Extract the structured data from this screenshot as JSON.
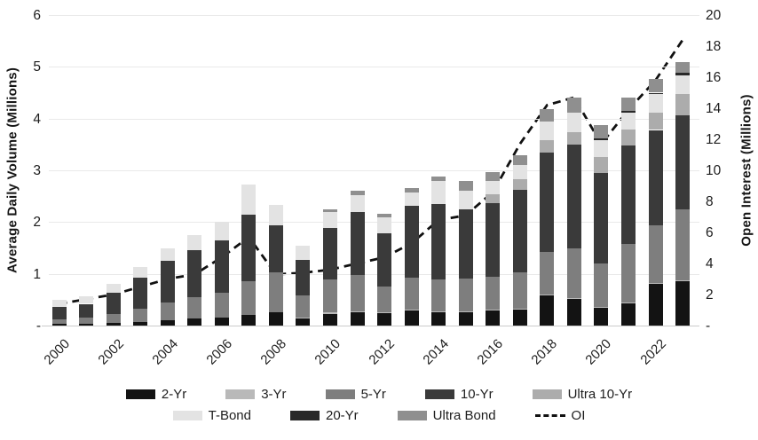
{
  "chart_data": {
    "type": "bar",
    "subtype": "stacked-bar-with-line-overlay",
    "categories": [
      2000,
      2001,
      2002,
      2003,
      2004,
      2005,
      2006,
      2007,
      2008,
      2009,
      2010,
      2011,
      2012,
      2013,
      2014,
      2015,
      2016,
      2017,
      2018,
      2019,
      2020,
      2021,
      2022,
      2023
    ],
    "x_tick_labels": [
      "2000",
      "2002",
      "2004",
      "2006",
      "2008",
      "2010",
      "2012",
      "2014",
      "2016",
      "2018",
      "2020",
      "2022"
    ],
    "series": [
      {
        "name": "2-Yr",
        "color": "#131313",
        "values": [
          0.03,
          0.03,
          0.05,
          0.07,
          0.1,
          0.13,
          0.15,
          0.2,
          0.26,
          0.15,
          0.23,
          0.26,
          0.24,
          0.29,
          0.26,
          0.26,
          0.29,
          0.31,
          0.58,
          0.51,
          0.34,
          0.43,
          0.8,
          0.86
        ]
      },
      {
        "name": "3-Yr",
        "color": "#b9b9b9",
        "values": [
          0,
          0,
          0,
          0,
          0,
          0,
          0,
          0,
          0,
          0.01,
          0.02,
          0.02,
          0.02,
          0.02,
          0.02,
          0.02,
          0.02,
          0.02,
          0.02,
          0.02,
          0.02,
          0.02,
          0.02,
          0.02
        ]
      },
      {
        "name": "5-Yr",
        "color": "#7e7e7e",
        "values": [
          0.09,
          0.12,
          0.18,
          0.26,
          0.35,
          0.42,
          0.48,
          0.65,
          0.77,
          0.43,
          0.64,
          0.7,
          0.49,
          0.61,
          0.61,
          0.63,
          0.63,
          0.7,
          0.83,
          0.96,
          0.84,
          1.13,
          1.11,
          1.36
        ]
      },
      {
        "name": "10-Yr",
        "color": "#3a3a3a",
        "values": [
          0.24,
          0.27,
          0.4,
          0.6,
          0.8,
          0.9,
          1.02,
          1.3,
          0.9,
          0.68,
          1.0,
          1.21,
          1.03,
          1.4,
          1.46,
          1.34,
          1.43,
          1.6,
          1.92,
          2.0,
          1.75,
          1.9,
          1.85,
          1.83
        ]
      },
      {
        "name": "Ultra 10-Yr",
        "color": "#acacac",
        "values": [
          0,
          0,
          0,
          0,
          0,
          0,
          0,
          0,
          0,
          0,
          0,
          0,
          0,
          0,
          0,
          0,
          0.17,
          0.2,
          0.23,
          0.25,
          0.31,
          0.31,
          0.34,
          0.41
        ]
      },
      {
        "name": "T-Bond",
        "color": "#e3e3e3",
        "values": [
          0.14,
          0.14,
          0.17,
          0.2,
          0.25,
          0.3,
          0.35,
          0.58,
          0.4,
          0.28,
          0.3,
          0.33,
          0.31,
          0.25,
          0.44,
          0.36,
          0.26,
          0.28,
          0.37,
          0.37,
          0.33,
          0.33,
          0.35,
          0.35
        ]
      },
      {
        "name": "20-Yr",
        "color": "#292929",
        "values": [
          0,
          0,
          0,
          0,
          0,
          0,
          0,
          0,
          0,
          0,
          0,
          0,
          0,
          0,
          0,
          0,
          0,
          0,
          0,
          0,
          0.02,
          0.03,
          0.03,
          0.05
        ]
      },
      {
        "name": "Ultra Bond",
        "color": "#8f8f8f",
        "values": [
          0,
          0,
          0,
          0,
          0,
          0,
          0,
          0,
          0,
          0,
          0.06,
          0.09,
          0.07,
          0.09,
          0.09,
          0.18,
          0.17,
          0.18,
          0.23,
          0.29,
          0.26,
          0.25,
          0.26,
          0.22
        ]
      }
    ],
    "line_series": {
      "name": "OI",
      "axis": "right",
      "style": "dashed",
      "color": "#111111",
      "values": [
        1.4,
        1.7,
        2.0,
        2.5,
        3.0,
        3.3,
        4.4,
        5.7,
        3.3,
        3.4,
        3.6,
        4.0,
        4.4,
        5.3,
        6.8,
        7.1,
        8.6,
        11.7,
        14.2,
        14.7,
        11.7,
        13.9,
        15.8,
        18.4
      ]
    },
    "left_ylim": [
      0,
      6
    ],
    "right_ylim": [
      0,
      20
    ],
    "grid": true,
    "legend_position": "bottom"
  },
  "left_axis": {
    "title": "Average Daily Volume (Millions)",
    "tick_labels_top_to_bottom": [
      "6",
      "5",
      "4",
      "3",
      "2",
      "1",
      "-"
    ]
  },
  "right_axis": {
    "title": "Open Interest (Millions)",
    "tick_labels_top_to_bottom": [
      "20",
      "18",
      "16",
      "14",
      "12",
      "10",
      "8",
      "6",
      "4",
      "2",
      "-"
    ]
  },
  "legend": {
    "rows": [
      [
        {
          "label": "2-Yr",
          "key": "2-Yr"
        },
        {
          "label": "3-Yr",
          "key": "3-Yr"
        },
        {
          "label": "5-Yr",
          "key": "5-Yr"
        },
        {
          "label": "10-Yr",
          "key": "10-Yr"
        },
        {
          "label": "Ultra 10-Yr",
          "key": "Ultra 10-Yr"
        }
      ],
      [
        {
          "label": "T-Bond",
          "key": "T-Bond"
        },
        {
          "label": "20-Yr",
          "key": "20-Yr"
        },
        {
          "label": "Ultra Bond",
          "key": "Ultra Bond"
        },
        {
          "label": "OI",
          "key": "OI",
          "dashed": true
        }
      ]
    ]
  }
}
